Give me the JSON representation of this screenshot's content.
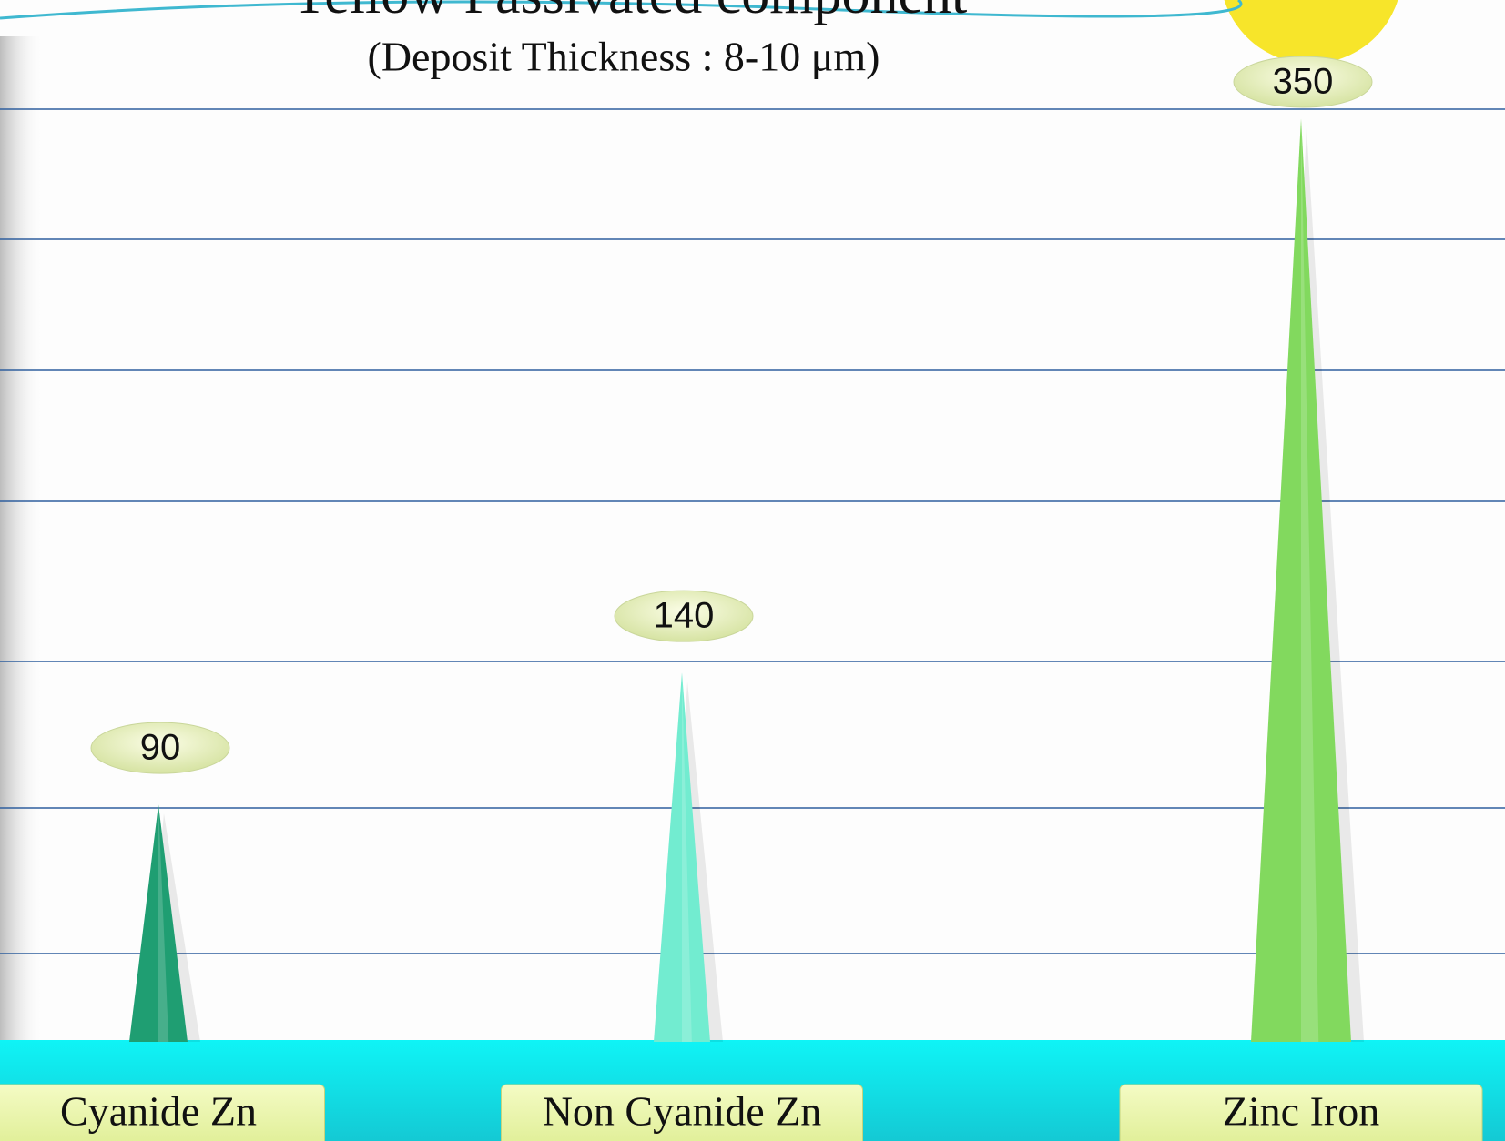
{
  "chart_data": {
    "type": "cone",
    "title": "Yellow Passivated component",
    "subtitle": "(Deposit Thickness : 8-10 μm)",
    "categories": [
      "Cyanide Zn",
      "Non Cyanide Zn",
      "Zinc Iron"
    ],
    "values": [
      90,
      140,
      350
    ],
    "colors": [
      "#1f9e72",
      "#72ecd0",
      "#82d95e"
    ],
    "ylim": [
      0,
      395
    ]
  }
}
